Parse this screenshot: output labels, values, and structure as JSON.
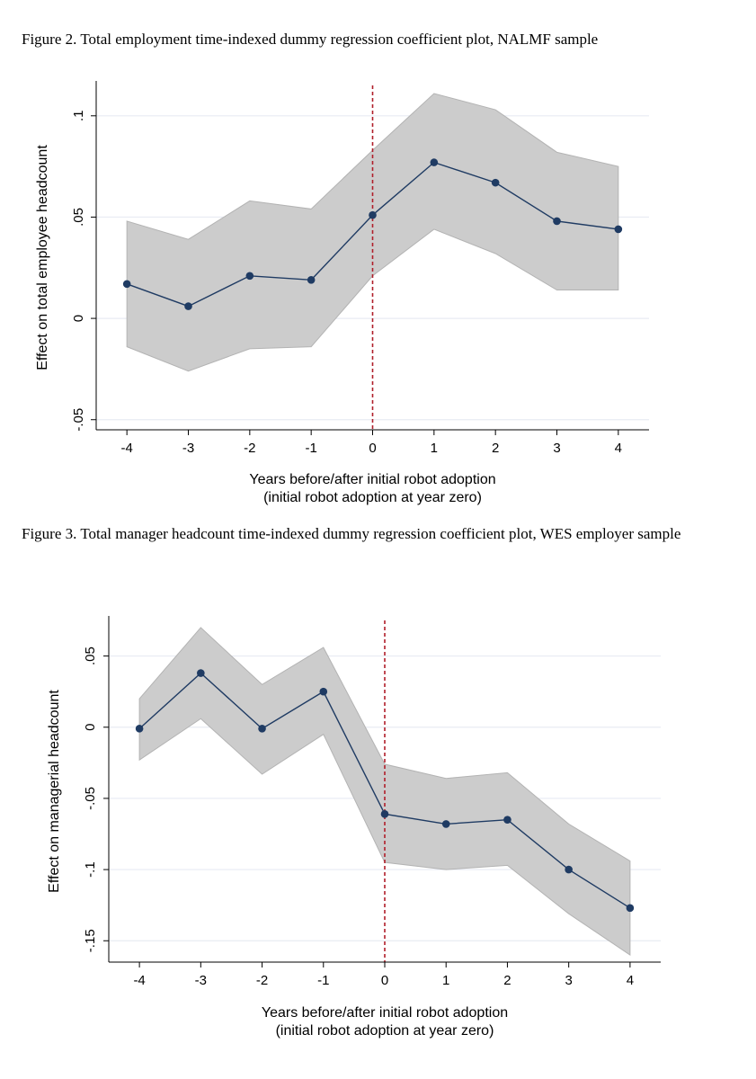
{
  "figures": [
    {
      "caption": "Figure 2. Total employment time-indexed dummy regression coefficient plot, NALMF sample"
    },
    {
      "caption": "Figure 3. Total manager headcount time-indexed dummy regression coefficient plot, WES employer sample"
    }
  ],
  "chart_data": [
    {
      "type": "line",
      "title": "",
      "xlabel": "Years before/after initial robot adoption",
      "xlabel2": "(initial robot adoption at year zero)",
      "ylabel": "Effect on total employee headcount",
      "x": [
        -4,
        -3,
        -2,
        -1,
        0,
        1,
        2,
        3,
        4
      ],
      "x_tick_labels": [
        "-4",
        "-3",
        "-2",
        "-1",
        "0",
        "1",
        "2",
        "3",
        "4"
      ],
      "y_ticks": [
        -0.05,
        0,
        0.05,
        0.1
      ],
      "y_tick_labels": [
        "-.05",
        "0",
        ".05",
        ".1"
      ],
      "ylim": [
        -0.055,
        0.115
      ],
      "xlim": [
        -4.5,
        4.5
      ],
      "grid": true,
      "reference_line_x": 0,
      "series": [
        {
          "values": [
            0.017,
            0.006,
            0.021,
            0.019,
            0.051,
            0.077,
            0.067,
            0.048,
            0.044
          ],
          "ci_upper": [
            0.048,
            0.039,
            0.058,
            0.054,
            0.083,
            0.111,
            0.103,
            0.082,
            0.075
          ],
          "ci_lower": [
            -0.014,
            -0.026,
            -0.015,
            -0.014,
            0.021,
            0.044,
            0.032,
            0.014,
            0.014
          ]
        }
      ],
      "colors": {
        "line": "#1f3b63",
        "ci_band": "#cccccc",
        "ci_edge": "#b3b3b3",
        "reference": "#b01e2a",
        "grid": "#e8ebf3"
      }
    },
    {
      "type": "line",
      "title": "",
      "xlabel": "Years before/after initial robot adoption",
      "xlabel2": "(initial robot adoption at year zero)",
      "ylabel": "Effect on managerial headcount",
      "x": [
        -4,
        -3,
        -2,
        -1,
        0,
        1,
        2,
        3,
        4
      ],
      "x_tick_labels": [
        "-4",
        "-3",
        "-2",
        "-1",
        "0",
        "1",
        "2",
        "3",
        "4"
      ],
      "y_ticks": [
        -0.15,
        -0.1,
        -0.05,
        0,
        0.05
      ],
      "y_tick_labels": [
        "-.15",
        "-.1",
        "-.05",
        "0",
        ".05"
      ],
      "ylim": [
        -0.165,
        0.075
      ],
      "xlim": [
        -4.5,
        4.5
      ],
      "grid": true,
      "reference_line_x": 0,
      "series": [
        {
          "values": [
            -0.001,
            0.038,
            -0.001,
            0.025,
            -0.061,
            -0.068,
            -0.065,
            -0.1,
            -0.127
          ],
          "ci_upper": [
            0.02,
            0.07,
            0.03,
            0.056,
            -0.026,
            -0.036,
            -0.032,
            -0.068,
            -0.094
          ],
          "ci_lower": [
            -0.023,
            0.006,
            -0.033,
            -0.005,
            -0.095,
            -0.1,
            -0.097,
            -0.131,
            -0.16
          ]
        }
      ],
      "colors": {
        "line": "#1f3b63",
        "ci_band": "#cccccc",
        "ci_edge": "#b3b3b3",
        "reference": "#b01e2a",
        "grid": "#e8ebf3"
      }
    }
  ]
}
